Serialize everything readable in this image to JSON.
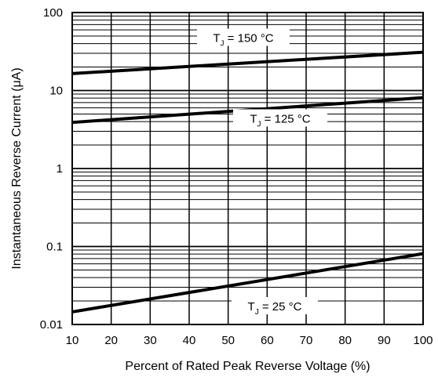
{
  "chart_data": {
    "type": "line",
    "xlabel": "Percent of Rated Peak Reverse Voltage (%)",
    "ylabel": "Instantaneous Reverse Current (μA)",
    "xlim": [
      10,
      100
    ],
    "ylim": [
      0.01,
      100
    ],
    "yscale": "log",
    "grid": true,
    "x_ticks": [
      "10",
      "20",
      "30",
      "40",
      "50",
      "60",
      "70",
      "80",
      "90",
      "100"
    ],
    "y_ticks": [
      "0.01",
      "0.1",
      "1",
      "10",
      "100"
    ],
    "series": [
      {
        "name": "T_J = 150 °C",
        "label_main": "T",
        "label_sub": "J",
        "label_rest": " = 150 °C",
        "x": [
          10,
          100
        ],
        "y": [
          16.5,
          31
        ]
      },
      {
        "name": "T_J = 125 °C",
        "label_main": "T",
        "label_sub": "J",
        "label_rest": " = 125 °C",
        "x": [
          10,
          100
        ],
        "y": [
          3.9,
          8.1
        ]
      },
      {
        "name": "T_J = 25 °C",
        "label_main": "T",
        "label_sub": "J",
        "label_rest": " = 25 °C",
        "x": [
          10,
          100
        ],
        "y": [
          0.0145,
          0.081
        ]
      }
    ]
  }
}
